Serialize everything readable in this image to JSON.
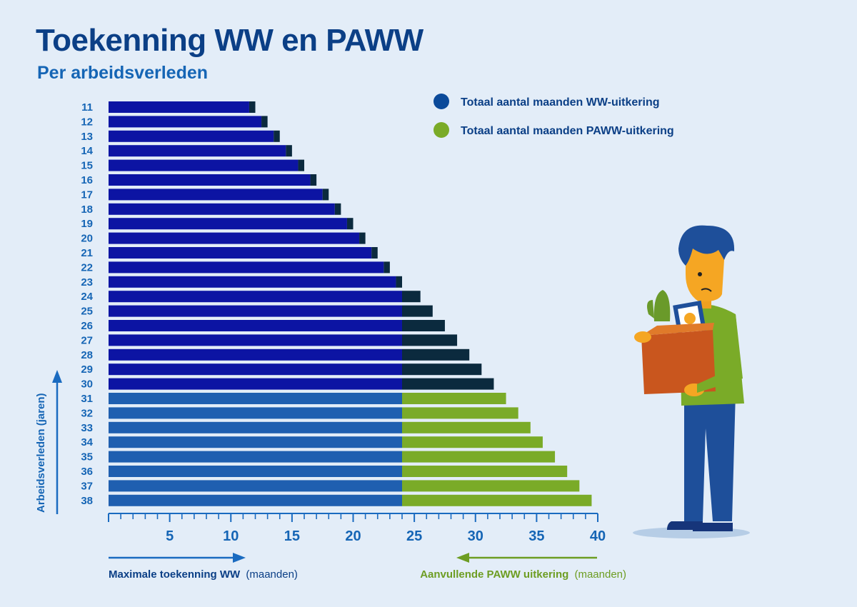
{
  "title": "Toekenning WW en PAWW",
  "subtitle": "Per arbeidsverleden",
  "chart_data": {
    "type": "bar",
    "orientation": "horizontal",
    "stacked": true,
    "title": "Toekenning WW en PAWW",
    "subtitle": "Per arbeidsverleden",
    "ylabel": "Arbeidsverleden (jaren)",
    "xlabel_left": "Maximale toekenning WW",
    "xlabel_left_unit": "(maanden)",
    "xlabel_right": "Aanvullende PAWW uitkering",
    "xlabel_right_unit": "(maanden)",
    "xlim": [
      0,
      40
    ],
    "xticks": [
      5,
      10,
      15,
      20,
      25,
      30,
      35,
      40
    ],
    "legend": [
      {
        "label": "Totaal aantal maanden WW-uitkering",
        "color": "#0b4a9a"
      },
      {
        "label": "Totaal aantal maanden PAWW-uitkering",
        "color": "#7aab28"
      }
    ],
    "legend_position": "top-right",
    "categories": [
      "11",
      "12",
      "13",
      "14",
      "15",
      "16",
      "17",
      "18",
      "19",
      "20",
      "21",
      "22",
      "23",
      "24",
      "25",
      "26",
      "27",
      "28",
      "29",
      "30",
      "31",
      "32",
      "33",
      "34",
      "35",
      "36",
      "37",
      "38"
    ],
    "series": [
      {
        "name": "Totaal aantal maanden WW-uitkering",
        "values": [
          11.5,
          12.5,
          13.5,
          14.5,
          15.5,
          16.5,
          17.5,
          18.5,
          19.5,
          20.5,
          21.5,
          22.5,
          23.5,
          24.0,
          24.0,
          24.0,
          24.0,
          24.0,
          24.0,
          24.0,
          24.0,
          24.0,
          24.0,
          24.0,
          24.0,
          24.0,
          24.0,
          24.0
        ]
      },
      {
        "name": "Totaal aantal maanden PAWW-uitkering",
        "values": [
          0.5,
          0.5,
          0.5,
          0.5,
          0.5,
          0.5,
          0.5,
          0.5,
          0.5,
          0.5,
          0.5,
          0.5,
          0.5,
          1.5,
          2.5,
          3.5,
          4.5,
          5.5,
          6.5,
          7.5,
          8.5,
          9.5,
          10.5,
          11.5,
          12.5,
          13.5,
          14.5,
          15.5
        ]
      }
    ],
    "grid": false
  },
  "colors": {
    "ww_pre31": "#0c14a3",
    "ww_post30": "#1f5fb0",
    "paww_pre31": "#0b2a3e",
    "paww_post30": "#7aab28",
    "axis": "#1a6bc0",
    "title": "#0b3f86"
  }
}
